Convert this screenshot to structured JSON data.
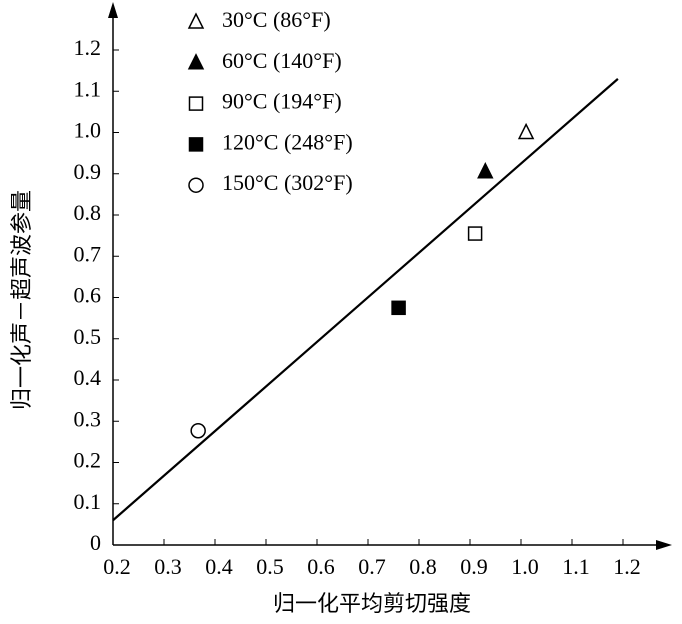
{
  "chart_data": {
    "type": "scatter",
    "xlabel": "归一化平均剪切强度",
    "ylabel": "归一化声－超声波参量",
    "xlim": [
      0.2,
      1.2
    ],
    "ylim": [
      0,
      1.2
    ],
    "xticks": [
      0.2,
      0.3,
      0.4,
      0.5,
      0.6,
      0.7,
      0.8,
      0.9,
      {
        "value": 1,
        "label": "1.0"
      },
      1.1,
      1.2
    ],
    "yticks": [
      0,
      0.1,
      0.2,
      0.3,
      0.4,
      0.5,
      0.6,
      0.7,
      0.8,
      0.9,
      {
        "value": 1,
        "label": "1.0"
      },
      1.1,
      1.2
    ],
    "color": "#000000",
    "series": [
      {
        "name": "30°C (86°F)",
        "marker": "triangle",
        "filled": false,
        "x": [
          1.01
        ],
        "values": [
          1.0
        ]
      },
      {
        "name": "60°C (140°F)",
        "marker": "triangle",
        "filled": true,
        "x": [
          0.93
        ],
        "values": [
          0.905
        ]
      },
      {
        "name": "90°C (194°F)",
        "marker": "square",
        "filled": false,
        "x": [
          0.91
        ],
        "values": [
          0.755
        ]
      },
      {
        "name": "120°C (248°F)",
        "marker": "square",
        "filled": true,
        "x": [
          0.76
        ],
        "values": [
          0.575
        ]
      },
      {
        "name": "150°C (302°F)",
        "marker": "circle",
        "filled": false,
        "x": [
          0.367
        ],
        "values": [
          0.277
        ]
      }
    ],
    "fit_line": {
      "x": [
        0.2,
        1.19
      ],
      "values": [
        0.06,
        1.13
      ]
    }
  }
}
